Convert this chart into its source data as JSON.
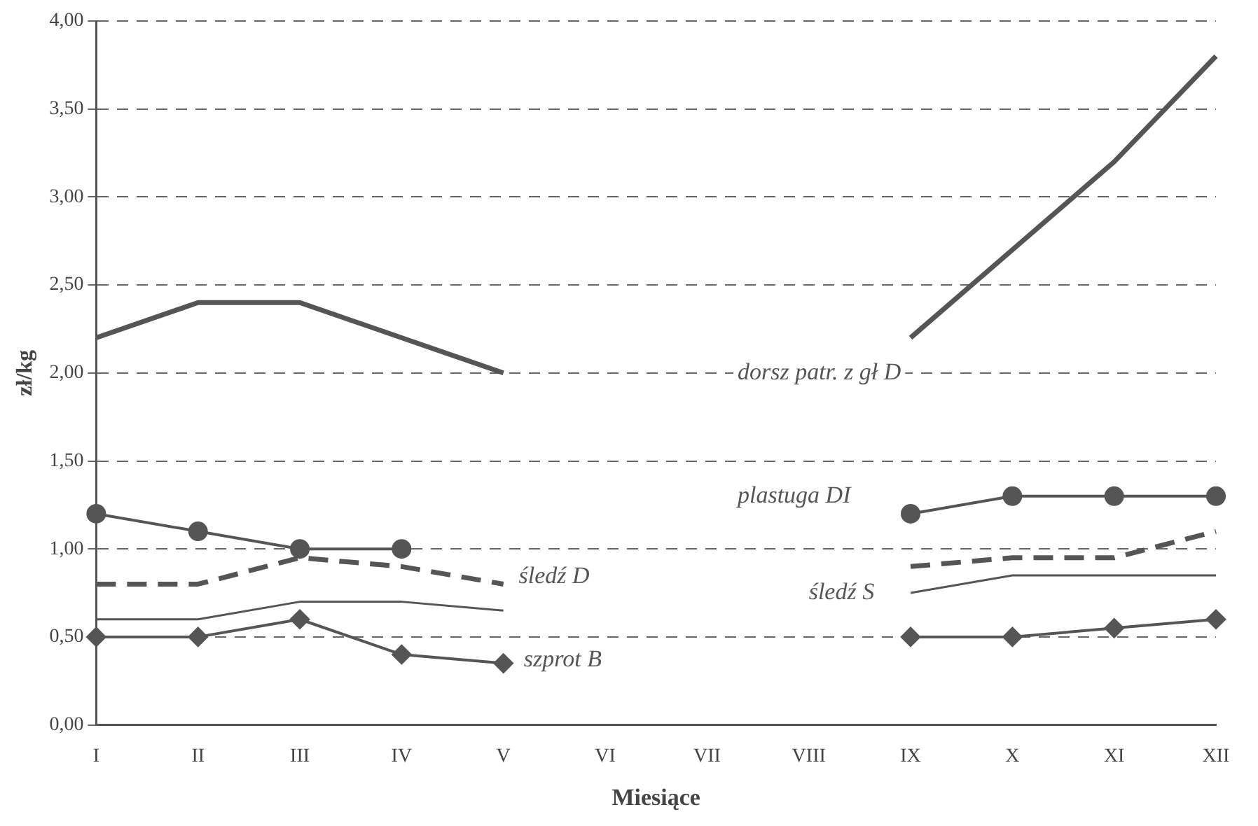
{
  "chart_data": {
    "type": "line",
    "xlabel": "Miesiące",
    "ylabel": "zł/kg",
    "categories": [
      "I",
      "II",
      "III",
      "IV",
      "V",
      "VI",
      "VII",
      "VIII",
      "IX",
      "X",
      "XI",
      "XII"
    ],
    "ylim": [
      0,
      4
    ],
    "yticks": [
      {
        "value": 0,
        "label": "0,00"
      },
      {
        "value": 0.5,
        "label": "0,50"
      },
      {
        "value": 1,
        "label": "1,00"
      },
      {
        "value": 1.5,
        "label": "1,50"
      },
      {
        "value": 2,
        "label": "2,00"
      },
      {
        "value": 2.5,
        "label": "2,50"
      },
      {
        "value": 3,
        "label": "3,00"
      },
      {
        "value": 3.5,
        "label": "3,50"
      },
      {
        "value": 4,
        "label": "4,00"
      }
    ],
    "grid": "y",
    "legend": false,
    "series": [
      {
        "name": "dorsz patr. z gł D",
        "color": "#555555",
        "marker": "none",
        "line_style": "solid",
        "values": [
          2.2,
          2.4,
          2.4,
          2.2,
          2.0,
          null,
          null,
          null,
          2.2,
          2.7,
          3.2,
          3.8
        ]
      },
      {
        "name": "plastuga DI",
        "color": "#555555",
        "marker": "circle",
        "line_style": "solid",
        "values": [
          1.2,
          1.1,
          1.0,
          1.0,
          null,
          null,
          null,
          null,
          1.2,
          1.3,
          1.3,
          1.3
        ]
      },
      {
        "name": "śledź D",
        "color": "#555555",
        "marker": "none",
        "line_style": "dashed",
        "values": [
          0.8,
          0.8,
          0.95,
          0.9,
          0.8,
          null,
          null,
          null,
          0.9,
          0.95,
          0.95,
          1.1
        ]
      },
      {
        "name": "śledź S",
        "color": "#555555",
        "marker": "none",
        "line_style": "solid",
        "values": [
          0.6,
          0.6,
          0.7,
          0.7,
          0.65,
          null,
          null,
          null,
          0.75,
          0.85,
          0.85,
          0.85
        ]
      },
      {
        "name": "szprot B",
        "color": "#555555",
        "marker": "diamond",
        "line_style": "solid",
        "values": [
          0.5,
          0.5,
          0.6,
          0.4,
          0.35,
          null,
          null,
          null,
          0.5,
          0.5,
          0.55,
          0.6
        ]
      }
    ]
  }
}
